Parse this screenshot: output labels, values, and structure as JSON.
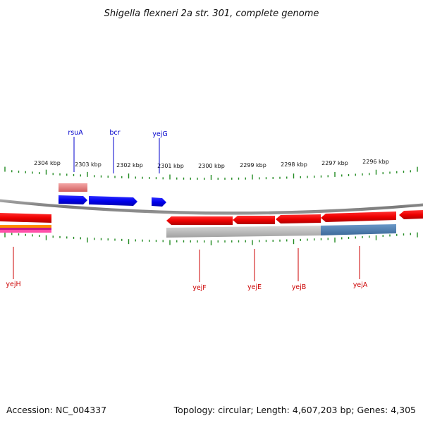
{
  "title": "Shigella flexneri 2a str. 301, complete genome",
  "footer": {
    "accession": "Accession: NC_004337",
    "summary": "Topology: circular; Length: 4,607,203 bp; Genes: 4,305"
  },
  "colors": {
    "top_label": "#0000cc",
    "bottom_label": "#cc0000",
    "tick": "#228b22",
    "backbone": "#808080"
  },
  "kbp_labels": [
    "2304 kbp",
    "2303 kbp",
    "2302 kbp",
    "2301 kbp",
    "2300 kbp",
    "2299 kbp",
    "2298 kbp",
    "2297 kbp",
    "2296 kbp"
  ],
  "top_genes": [
    "rsuA",
    "bcr",
    "yejG"
  ],
  "bottom_genes": [
    "yejH",
    "yejF",
    "yejE",
    "yejB",
    "yejA"
  ]
}
